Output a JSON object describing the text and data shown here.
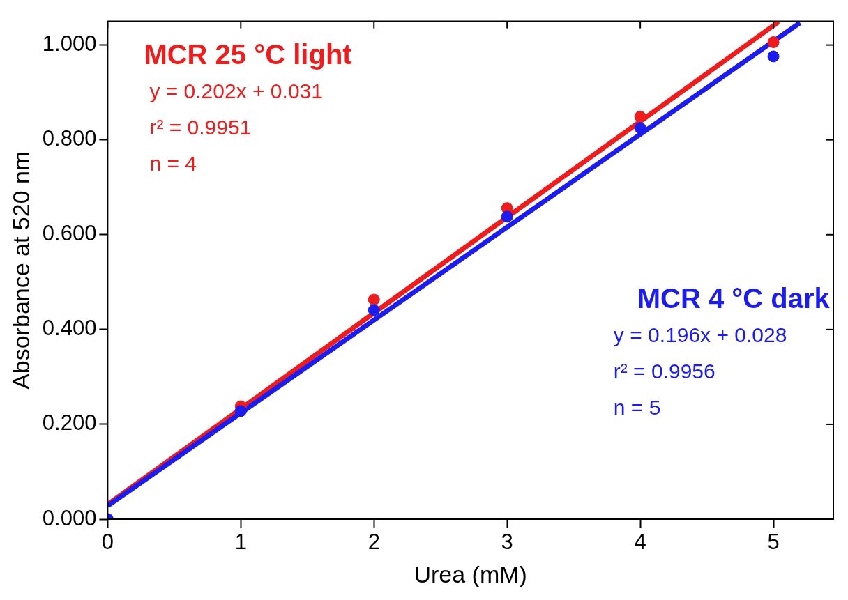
{
  "chart_data": {
    "type": "scatter",
    "xlabel": "Urea (mM)",
    "ylabel": "Absorbance at 520 nm",
    "xlim": [
      0,
      5.45
    ],
    "xticks": [
      0,
      1,
      2,
      3,
      4,
      5
    ],
    "ylim": [
      0,
      1.05
    ],
    "yticks": [
      {
        "value": 0,
        "label": "0.000"
      },
      {
        "value": 0.2,
        "label": "0.200"
      },
      {
        "value": 0.4,
        "label": "0.400"
      },
      {
        "value": 0.6,
        "label": "0.600"
      },
      {
        "value": 0.8,
        "label": "0.800"
      },
      {
        "value": 1,
        "label": "1.000"
      }
    ],
    "grid": false,
    "legend": false,
    "marker": "circle",
    "line_style": "solid",
    "series": [
      {
        "type": "line",
        "marker": "none",
        "color": "#ee1c1c",
        "x": [
          0,
          5.04
        ],
        "values": [
          0.031,
          1.049
        ]
      },
      {
        "type": "line",
        "marker": "none",
        "color": "#1c1cee",
        "x": [
          0,
          5.2
        ],
        "values": [
          0.028,
          1.047
        ]
      },
      {
        "name": "MCR 25 °C light",
        "color": "#ee1c1c",
        "x": [
          1,
          2,
          3,
          4,
          5
        ],
        "values": [
          0.238,
          0.463,
          0.656,
          0.849,
          1.006
        ]
      },
      {
        "name": "MCR 4 °C dark",
        "color": "#1c1cee",
        "x": [
          0,
          1,
          2,
          3,
          4,
          5
        ],
        "values": [
          0,
          0.228,
          0.441,
          0.638,
          0.825,
          0.976
        ]
      }
    ],
    "annotations": [
      "y = 0.202x + 0.031",
      "r² = 0.9951",
      "n = 4",
      "y = 0.196x + 0.028",
      "r² = 0.9956",
      "n = 5"
    ]
  }
}
